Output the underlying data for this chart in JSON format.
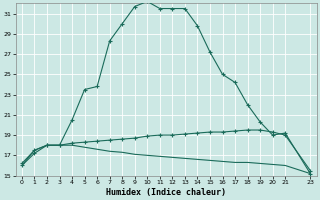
{
  "xlabel": "Humidex (Indice chaleur)",
  "bg_color": "#cce8e4",
  "grid_color": "#b0d4d0",
  "line_color": "#1a6b5a",
  "xlim": [
    -0.5,
    23.5
  ],
  "ylim": [
    15,
    32
  ],
  "xticks": [
    0,
    1,
    2,
    3,
    4,
    5,
    6,
    7,
    8,
    9,
    10,
    11,
    12,
    13,
    14,
    15,
    16,
    17,
    18,
    19,
    20,
    21,
    23
  ],
  "yticks": [
    15,
    17,
    19,
    21,
    23,
    25,
    27,
    29,
    31
  ],
  "curve1_x": [
    0,
    1,
    2,
    3,
    4,
    5,
    6,
    7,
    8,
    9,
    10,
    11,
    12,
    13,
    14,
    15,
    16,
    17,
    18,
    19,
    20,
    21,
    23
  ],
  "curve1_y": [
    16.0,
    17.2,
    18.0,
    18.0,
    20.5,
    23.5,
    23.8,
    28.3,
    30.0,
    31.7,
    32.2,
    31.5,
    31.5,
    31.5,
    29.8,
    27.2,
    25.0,
    24.2,
    22.0,
    20.3,
    19.0,
    19.2,
    15.2
  ],
  "curve2_x": [
    0,
    1,
    2,
    3,
    4,
    5,
    6,
    7,
    8,
    9,
    10,
    11,
    12,
    13,
    14,
    15,
    16,
    17,
    18,
    19,
    20,
    21,
    23
  ],
  "curve2_y": [
    16.2,
    17.5,
    18.0,
    18.0,
    18.2,
    18.3,
    18.4,
    18.5,
    18.6,
    18.7,
    18.9,
    19.0,
    19.0,
    19.1,
    19.2,
    19.3,
    19.3,
    19.4,
    19.5,
    19.5,
    19.3,
    19.0,
    15.5
  ],
  "curve3_x": [
    0,
    1,
    2,
    3,
    4,
    5,
    6,
    7,
    8,
    9,
    10,
    11,
    12,
    13,
    14,
    15,
    16,
    17,
    18,
    19,
    20,
    21,
    23
  ],
  "curve3_y": [
    16.0,
    17.5,
    18.0,
    18.0,
    18.0,
    17.8,
    17.6,
    17.4,
    17.3,
    17.1,
    17.0,
    16.9,
    16.8,
    16.7,
    16.6,
    16.5,
    16.4,
    16.3,
    16.3,
    16.2,
    16.1,
    16.0,
    15.2
  ]
}
